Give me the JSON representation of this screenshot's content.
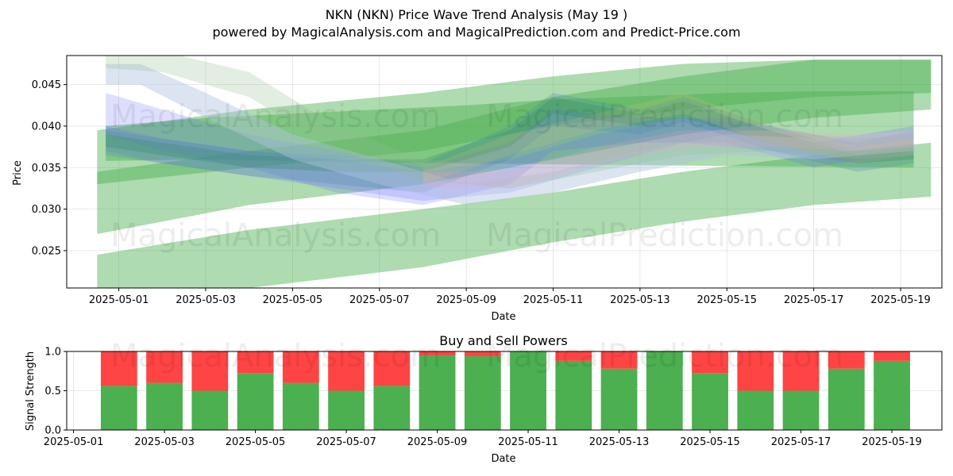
{
  "title": "NKN (NKN) Price Wave Trend Analysis (May 19 )",
  "subtitle": "powered by MagicalAnalysis.com and MagicalPrediction.com and Predict-Price.com",
  "watermarks": [
    "MagicalAnalysis.com",
    "MagicalPrediction.com"
  ],
  "colors": {
    "green_band": "#4caf50",
    "blue_band": "#6a6aff",
    "buy": "#4caf50",
    "sell": "#ff4444",
    "grid": "#e0e0e0"
  },
  "chart_data": [
    {
      "type": "area",
      "title": "",
      "xlabel": "Date",
      "ylabel": "Price",
      "ylim": [
        0.0205,
        0.0485
      ],
      "xlim": [
        "2025-04-29.8",
        "2025-05-19.95"
      ],
      "x_ticks": [
        "2025-05-01",
        "2025-05-03",
        "2025-05-05",
        "2025-05-07",
        "2025-05-09",
        "2025-05-11",
        "2025-05-13",
        "2025-05-15",
        "2025-05-17",
        "2025-05-19"
      ],
      "y_ticks": [
        0.025,
        0.03,
        0.035,
        0.04,
        0.045
      ],
      "grid": true,
      "series": [
        {
          "color": "#4caf50",
          "opacity": 0.45,
          "x": [
            "2025-04-30.5",
            "2025-05-04",
            "2025-05-08",
            "2025-05-11",
            "2025-05-14",
            "2025-05-17",
            "2025-05-19.7"
          ],
          "upper": [
            0.0395,
            0.042,
            0.044,
            0.046,
            0.0475,
            0.048,
            0.048
          ],
          "lower": [
            0.027,
            0.0305,
            0.033,
            0.036,
            0.039,
            0.041,
            0.042
          ]
        },
        {
          "color": "#4caf50",
          "opacity": 0.45,
          "x": [
            "2025-04-30.5",
            "2025-05-04",
            "2025-05-08",
            "2025-05-11",
            "2025-05-14",
            "2025-05-17",
            "2025-05-19.7"
          ],
          "upper": [
            0.0245,
            0.0275,
            0.03,
            0.032,
            0.0345,
            0.0365,
            0.038
          ],
          "lower": [
            0.02,
            0.0205,
            0.023,
            0.026,
            0.0285,
            0.0305,
            0.0315
          ]
        },
        {
          "color": "#4caf50",
          "opacity": 0.45,
          "x": [
            "2025-04-30.5",
            "2025-05-04",
            "2025-05-08",
            "2025-05-11",
            "2025-05-14",
            "2025-05-17",
            "2025-05-19.7"
          ],
          "upper": [
            0.0345,
            0.037,
            0.0395,
            0.0435,
            0.046,
            0.048,
            0.048
          ],
          "lower": [
            0.033,
            0.035,
            0.037,
            0.04,
            0.042,
            0.0435,
            0.044
          ]
        },
        {
          "color": "#4caf50",
          "opacity": 0.45,
          "x": [
            "2025-04-30.7",
            "2025-05-03",
            "2025-05-05",
            "2025-05-07",
            "2025-05-09",
            "2025-05-11",
            "2025-05-13",
            "2025-05-15",
            "2025-05-17",
            "2025-05-19.3"
          ],
          "upper": [
            0.04,
            0.041,
            0.0415,
            0.042,
            0.0425,
            0.0432,
            0.0436,
            0.044,
            0.0442,
            0.0442
          ],
          "lower": [
            0.0358,
            0.036,
            0.0358,
            0.0356,
            0.0355,
            0.0354,
            0.0353,
            0.0352,
            0.0351,
            0.035
          ]
        },
        {
          "color": "#6a6aff",
          "opacity": 0.22,
          "x": [
            "2025-04-30.7",
            "2025-05-02",
            "2025-05-04",
            "2025-05-06",
            "2025-05-08",
            "2025-05-10",
            "2025-05-11",
            "2025-05-13",
            "2025-05-15",
            "2025-05-17",
            "2025-05-19.3"
          ],
          "upper": [
            0.044,
            0.042,
            0.039,
            0.037,
            0.035,
            0.038,
            0.042,
            0.041,
            0.041,
            0.038,
            0.04
          ],
          "lower": [
            0.039,
            0.037,
            0.035,
            0.032,
            0.0305,
            0.033,
            0.037,
            0.038,
            0.038,
            0.035,
            0.037
          ]
        },
        {
          "color": "#6a6aff",
          "opacity": 0.22,
          "x": [
            "2025-04-30.7",
            "2025-05-02",
            "2025-05-04",
            "2025-05-06",
            "2025-05-08",
            "2025-05-10",
            "2025-05-12",
            "2025-05-14",
            "2025-05-16",
            "2025-05-18",
            "2025-05-19.3"
          ],
          "upper": [
            0.04,
            0.0385,
            0.037,
            0.036,
            0.0345,
            0.036,
            0.039,
            0.041,
            0.04,
            0.038,
            0.0395
          ],
          "lower": [
            0.037,
            0.0355,
            0.034,
            0.0325,
            0.031,
            0.032,
            0.035,
            0.038,
            0.037,
            0.0355,
            0.0365
          ]
        },
        {
          "color": "#4682b4",
          "opacity": 0.25,
          "x": [
            "2025-04-30.7",
            "2025-05-02",
            "2025-05-04",
            "2025-05-06",
            "2025-05-08",
            "2025-05-10",
            "2025-05-11",
            "2025-05-13",
            "2025-05-14",
            "2025-05-16",
            "2025-05-18",
            "2025-05-19.3"
          ],
          "upper": [
            0.0395,
            0.0385,
            0.037,
            0.0365,
            0.0355,
            0.04,
            0.044,
            0.042,
            0.0435,
            0.04,
            0.037,
            0.038
          ],
          "lower": [
            0.0365,
            0.0355,
            0.034,
            0.033,
            0.032,
            0.036,
            0.04,
            0.039,
            0.0405,
            0.037,
            0.0345,
            0.0355
          ]
        },
        {
          "color": "#2e8b57",
          "opacity": 0.28,
          "x": [
            "2025-04-30.7",
            "2025-05-02",
            "2025-05-04",
            "2025-05-06",
            "2025-05-08",
            "2025-05-10",
            "2025-05-11",
            "2025-05-13",
            "2025-05-14",
            "2025-05-16",
            "2025-05-18",
            "2025-05-19.3"
          ],
          "upper": [
            0.039,
            0.038,
            0.0365,
            0.036,
            0.036,
            0.0395,
            0.0435,
            0.0415,
            0.043,
            0.0395,
            0.0365,
            0.0375
          ],
          "lower": [
            0.0375,
            0.0365,
            0.035,
            0.0345,
            0.0345,
            0.0375,
            0.0415,
            0.04,
            0.041,
            0.038,
            0.0355,
            0.036
          ]
        },
        {
          "color": "#b0c4de",
          "opacity": 0.45,
          "x": [
            "2025-04-30.7",
            "2025-05-01.5",
            "2025-05-03",
            "2025-05-05",
            "2025-05-07",
            "2025-05-09",
            "2025-05-11",
            "2025-05-13",
            "2025-05-15",
            "2025-05-17",
            "2025-05-19.3"
          ],
          "upper": [
            0.0475,
            0.0475,
            0.044,
            0.039,
            0.036,
            0.033,
            0.0345,
            0.037,
            0.039,
            0.0385,
            0.0395
          ],
          "lower": [
            0.045,
            0.045,
            0.041,
            0.036,
            0.033,
            0.0305,
            0.032,
            0.0345,
            0.0365,
            0.036,
            0.037
          ]
        },
        {
          "color": "#8fbc8f",
          "opacity": 0.25,
          "x": [
            "2025-04-30.7",
            "2025-05-02",
            "2025-05-04",
            "2025-05-06",
            "2025-05-08",
            "2025-05-10",
            "2025-05-12",
            "2025-05-14",
            "2025-05-16",
            "2025-05-18",
            "2025-05-19.3"
          ],
          "upper": [
            0.049,
            0.049,
            0.0465,
            0.04,
            0.036,
            0.035,
            0.037,
            0.039,
            0.0395,
            0.0385,
            0.039
          ],
          "lower": [
            0.047,
            0.0465,
            0.0435,
            0.037,
            0.0335,
            0.0325,
            0.0345,
            0.0365,
            0.037,
            0.036,
            0.0365
          ]
        },
        {
          "color": "#ff9ecf",
          "opacity": 0.18,
          "x": [
            "2025-05-08",
            "2025-05-10",
            "2025-05-12",
            "2025-05-14",
            "2025-05-16",
            "2025-05-18",
            "2025-05-19.3"
          ],
          "upper": [
            0.0345,
            0.0345,
            0.0375,
            0.0395,
            0.0395,
            0.039,
            0.0395
          ],
          "lower": [
            0.0325,
            0.0325,
            0.0355,
            0.0375,
            0.0375,
            0.037,
            0.0375
          ]
        },
        {
          "color": "#e0c070",
          "opacity": 0.18,
          "x": [
            "2025-05-08",
            "2025-05-10",
            "2025-05-12",
            "2025-05-14",
            "2025-05-16",
            "2025-05-18",
            "2025-05-19.3"
          ],
          "upper": [
            0.035,
            0.039,
            0.0415,
            0.044,
            0.04,
            0.0375,
            0.0385
          ],
          "lower": [
            0.033,
            0.0365,
            0.0395,
            0.0415,
            0.038,
            0.0355,
            0.0365
          ]
        }
      ]
    },
    {
      "type": "bar",
      "stacked": true,
      "title": "Buy and Sell Powers",
      "xlabel": "Date",
      "ylabel": "Signal Strength",
      "ylim": [
        0,
        1
      ],
      "xlim": [
        "2025-04-30.85",
        "2025-05-20.1"
      ],
      "x_ticks": [
        "2025-05-01",
        "2025-05-03",
        "2025-05-05",
        "2025-05-07",
        "2025-05-09",
        "2025-05-11",
        "2025-05-13",
        "2025-05-15",
        "2025-05-17",
        "2025-05-19"
      ],
      "y_ticks": [
        "0.0",
        "0.5",
        "1.0"
      ],
      "categories": [
        "2025-05-02",
        "2025-05-03",
        "2025-05-04",
        "2025-05-05",
        "2025-05-06",
        "2025-05-07",
        "2025-05-08",
        "2025-05-09",
        "2025-05-10",
        "2025-05-11",
        "2025-05-12",
        "2025-05-13",
        "2025-05-14",
        "2025-05-15",
        "2025-05-16",
        "2025-05-17",
        "2025-05-18",
        "2025-05-19"
      ],
      "series": [
        {
          "values": [
            0.56,
            0.6,
            0.5,
            0.72,
            0.6,
            0.5,
            0.56,
            0.95,
            0.94,
            1.0,
            0.88,
            0.78,
            1.0,
            0.72,
            0.5,
            0.5,
            0.78,
            0.88
          ]
        },
        {
          "values": [
            0.44,
            0.4,
            0.5,
            0.28,
            0.4,
            0.5,
            0.44,
            0.05,
            0.06,
            0.0,
            0.12,
            0.22,
            0.0,
            0.28,
            0.5,
            0.5,
            0.22,
            0.12
          ]
        }
      ]
    }
  ]
}
